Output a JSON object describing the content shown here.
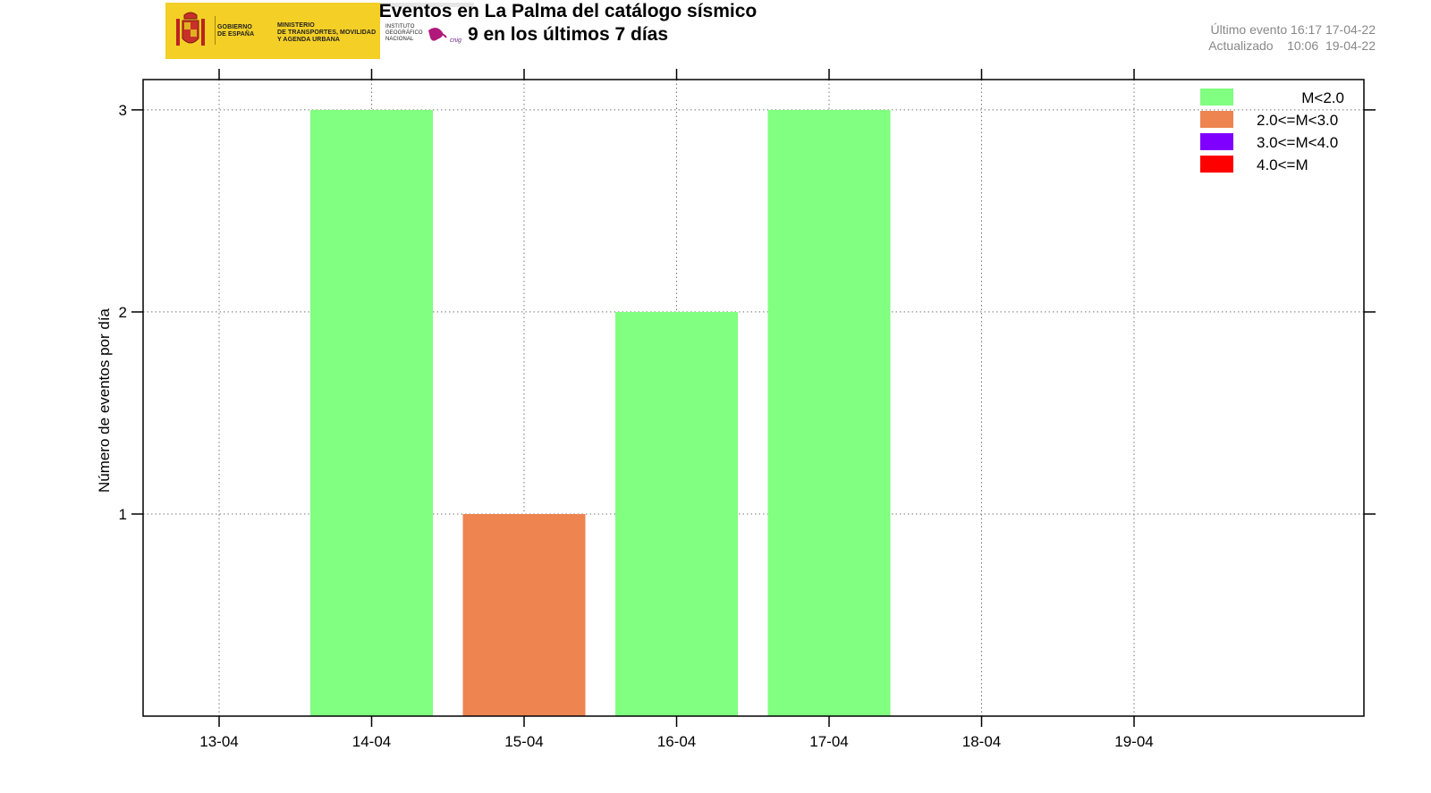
{
  "header": {
    "title_line1": "Eventos en La Palma del catálogo sísmico",
    "title_line2": "9 en los últimos 7 días",
    "ultimo_label": "Último evento",
    "ultimo_value": "16:17 17-04-22",
    "actualizado_label": "Actualizado",
    "actualizado_value": "10:06  19-04-22"
  },
  "logo": {
    "gob_line1": "GOBIERNO",
    "gob_line2": "DE ESPAÑA",
    "min_line1": "MINISTERIO",
    "min_line2": "DE TRANSPORTES, MOVILIDAD",
    "min_line3": "Y AGENDA URBANA",
    "inst_line1": "INSTITUTO",
    "inst_line2": "GEOGRÁFICO",
    "inst_line3": "NACIONAL",
    "inst_mark": "cnig"
  },
  "colors": {
    "m_lt2": "#80ff80",
    "m_2_3": "#ee8450",
    "m_3_4": "#8000ff",
    "m_ge4": "#ff0000"
  },
  "chart_data": {
    "type": "bar",
    "stacked": true,
    "ylabel": "Número de eventos por día",
    "xlabel": "",
    "categories": [
      "13-04",
      "14-04",
      "15-04",
      "16-04",
      "17-04",
      "18-04",
      "19-04"
    ],
    "ylim": [
      0,
      3.15
    ],
    "yticks": [
      1,
      2,
      3
    ],
    "grid": true,
    "legend_position": "top-right",
    "series": [
      {
        "name": "M<2.0",
        "color": "#80ff80",
        "values": [
          0,
          3,
          0,
          2,
          3,
          0,
          0
        ]
      },
      {
        "name": "2.0<=M<3.0",
        "color": "#ee8450",
        "values": [
          0,
          0,
          1,
          0,
          0,
          0,
          0
        ]
      },
      {
        "name": "3.0<=M<4.0",
        "color": "#8000ff",
        "values": [
          0,
          0,
          0,
          0,
          0,
          0,
          0
        ]
      },
      {
        "name": "4.0<=M",
        "color": "#ff0000",
        "values": [
          0,
          0,
          0,
          0,
          0,
          0,
          0
        ]
      }
    ]
  }
}
